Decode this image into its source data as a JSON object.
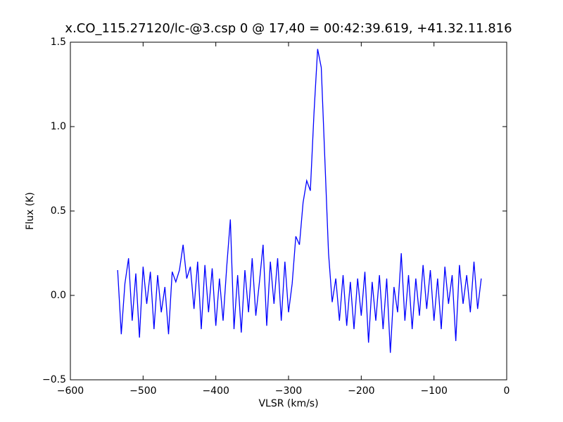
{
  "chart_data": {
    "type": "line",
    "title": "x.CO_115.27120/lc-@3.csp 0 @ 17,40 = 00:42:39.619, +41.32.11.816",
    "x_label": "VLSR (km/s)",
    "y_label": "Flux (K)",
    "xlim": [
      -600,
      0
    ],
    "ylim": [
      -0.5,
      1.5
    ],
    "xticks": [
      {
        "value": -600,
        "label": "−600"
      },
      {
        "value": -500,
        "label": "−500"
      },
      {
        "value": -400,
        "label": "−400"
      },
      {
        "value": -300,
        "label": "−300"
      },
      {
        "value": -200,
        "label": "−200"
      },
      {
        "value": -100,
        "label": "−100"
      },
      0
    ],
    "yticks": [
      {
        "value": -0.5,
        "label": "−0.5"
      },
      {
        "value": 0,
        "label": "0.0"
      },
      0.5,
      {
        "value": 1,
        "label": "1.0"
      },
      1.5
    ],
    "grid": false,
    "series": [
      {
        "color": "#0000ff",
        "x": [
          -535,
          -530,
          -525,
          -520,
          -515,
          -510,
          -505,
          -500,
          -495,
          -490,
          -485,
          -480,
          -475,
          -470,
          -465,
          -460,
          -455,
          -450,
          -445,
          -440,
          -435,
          -430,
          -425,
          -420,
          -415,
          -410,
          -405,
          -400,
          -395,
          -390,
          -385,
          -380,
          -375,
          -370,
          -365,
          -360,
          -355,
          -350,
          -345,
          -340,
          -335,
          -330,
          -325,
          -320,
          -315,
          -310,
          -305,
          -300,
          -295,
          -290,
          -285,
          -280,
          -275,
          -270,
          -265,
          -260,
          -255,
          -250,
          -245,
          -240,
          -235,
          -230,
          -225,
          -220,
          -215,
          -210,
          -205,
          -200,
          -195,
          -190,
          -185,
          -180,
          -175,
          -170,
          -165,
          -160,
          -155,
          -150,
          -145,
          -140,
          -135,
          -130,
          -125,
          -120,
          -115,
          -110,
          -105,
          -100,
          -95,
          -90,
          -85,
          -80,
          -75,
          -70,
          -65,
          -60,
          -55,
          -50,
          -45,
          -40,
          -35
        ],
        "values": [
          0.15,
          -0.23,
          0.07,
          0.22,
          -0.15,
          0.13,
          -0.25,
          0.17,
          -0.05,
          0.14,
          -0.2,
          0.12,
          -0.1,
          0.05,
          -0.23,
          0.14,
          0.08,
          0.15,
          0.3,
          0.1,
          0.17,
          -0.08,
          0.2,
          -0.2,
          0.18,
          -0.1,
          0.16,
          -0.18,
          0.1,
          -0.15,
          0.17,
          0.45,
          -0.2,
          0.12,
          -0.22,
          0.15,
          -0.1,
          0.22,
          -0.12,
          0.08,
          0.3,
          -0.18,
          0.2,
          -0.05,
          0.22,
          -0.15,
          0.2,
          -0.1,
          0.07,
          0.35,
          0.3,
          0.55,
          0.68,
          0.62,
          1.08,
          1.46,
          1.35,
          0.8,
          0.25,
          -0.04,
          0.1,
          -0.15,
          0.12,
          -0.18,
          0.08,
          -0.2,
          0.1,
          -0.12,
          0.14,
          -0.28,
          0.08,
          -0.15,
          0.12,
          -0.2,
          0.1,
          -0.34,
          0.05,
          -0.1,
          0.25,
          -0.15,
          0.12,
          -0.2,
          0.1,
          -0.12,
          0.18,
          -0.08,
          0.15,
          -0.15,
          0.1,
          -0.2,
          0.17,
          -0.05,
          0.12,
          -0.27,
          0.18,
          -0.05,
          0.12,
          -0.1,
          0.2,
          -0.08,
          0.1
        ]
      }
    ]
  }
}
